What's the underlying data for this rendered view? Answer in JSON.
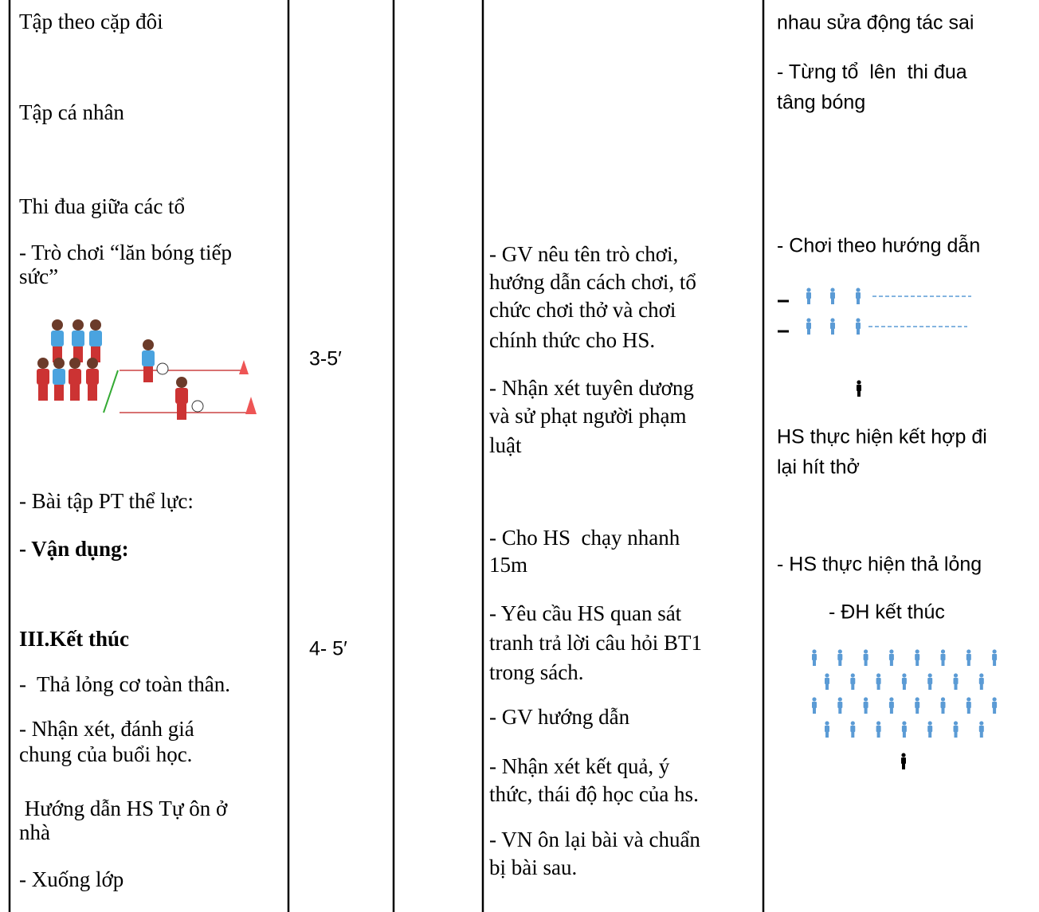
{
  "content": [
    "Tập theo cặp đôi",
    "Tập cá nhân",
    "Thi đua giữa các tổ",
    "- Trò chơi “lăn bóng tiếp",
    "sức”",
    "- Bài tập PT thể lực:",
    "- Vận dụng:",
    "III.Kết thúc",
    "-  Thả lỏng cơ toàn thân.",
    "- Nhận xét, đánh giá",
    "chung của buổi học.",
    " Hướng dẫn HS Tự ôn ở",
    "nhà",
    "- Xuống lớp"
  ],
  "time": [
    "3-5′",
    "4- 5′"
  ],
  "teacher": [
    "- GV nêu tên trò chơi,",
    "hướng dẫn cách chơi, tổ",
    "chức chơi thở và chơi",
    "chính thức cho HS.",
    "- Nhận xét tuyên dương",
    "và sử phạt người phạm",
    "luật",
    "- Cho HS  chạy nhanh",
    "15m",
    "- Yêu cầu HS quan sát",
    "tranh trả lời câu hỏi BT1",
    "trong sách.",
    "- GV hướng dẫn",
    "- Nhận xét kết quả, ý",
    "thức, thái độ học của hs.",
    "- VN ôn lại bài và chuẩn",
    "bị bài sau."
  ],
  "student": [
    "nhau sửa động tác sai",
    "- Từng tổ  lên  thi đua",
    "tâng bóng",
    "- Chơi theo hướng dẫn",
    "HS thực hiện kết hợp đi",
    "lại hít thở",
    "- HS thực hiện thả lỏng",
    "- ĐH kết thúc"
  ]
}
